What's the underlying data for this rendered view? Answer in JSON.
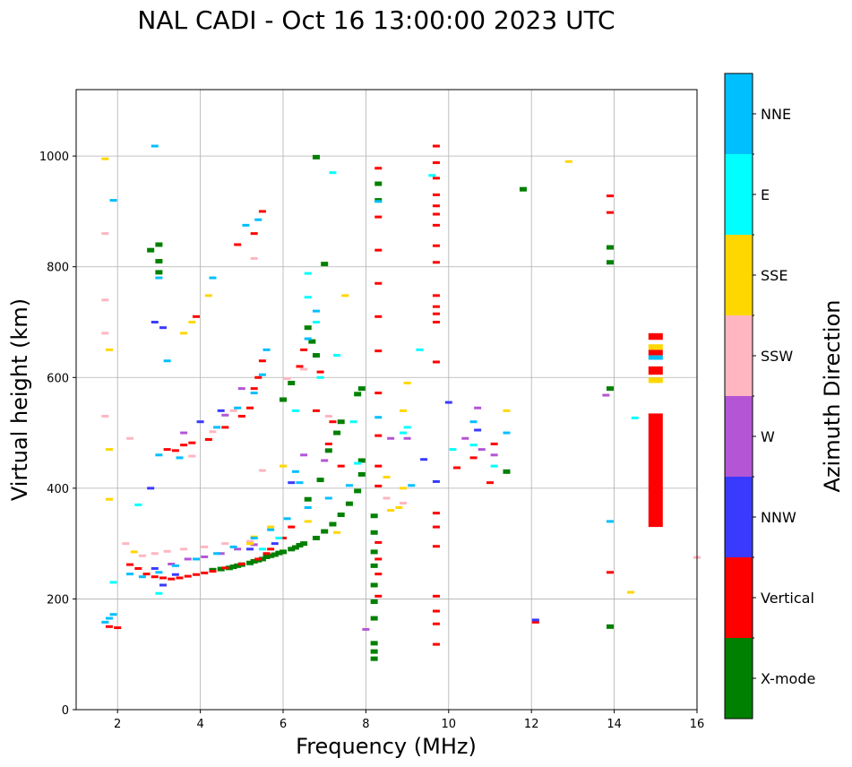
{
  "chart_data": {
    "type": "scatter",
    "title": "NAL CADI - Oct 16 13:00:00 2023 UTC",
    "xlabel": "Frequency (MHz)",
    "ylabel": "Virtual height (km)",
    "xlim": [
      1,
      16
    ],
    "ylim": [
      0,
      1120
    ],
    "xticks": [
      2,
      4,
      6,
      8,
      10,
      12,
      14,
      16
    ],
    "yticks": [
      0,
      200,
      400,
      600,
      800,
      1000
    ],
    "grid": true,
    "colorbar": {
      "label": "Azimuth Direction",
      "categories": [
        {
          "name": "X-mode",
          "color": "#008000"
        },
        {
          "name": "Vertical",
          "color": "#ff0000"
        },
        {
          "name": "NNW",
          "color": "#3a3aff"
        },
        {
          "name": "W",
          "color": "#b455d6"
        },
        {
          "name": "SSW",
          "color": "#ffb6c1"
        },
        {
          "name": "SSE",
          "color": "#ffd700"
        },
        {
          "name": "E",
          "color": "#00ffff"
        },
        {
          "name": "NNE",
          "color": "#00bfff"
        }
      ]
    },
    "series": [
      {
        "name": "X-mode",
        "points": [
          [
            6.5,
            300
          ],
          [
            6.4,
            297
          ],
          [
            6.3,
            293
          ],
          [
            6.2,
            290
          ],
          [
            6.0,
            285
          ],
          [
            5.9,
            283
          ],
          [
            5.8,
            280
          ],
          [
            5.7,
            278
          ],
          [
            5.6,
            276
          ],
          [
            5.5,
            272
          ],
          [
            5.4,
            270
          ],
          [
            5.3,
            268
          ],
          [
            5.2,
            265
          ],
          [
            5.0,
            262
          ],
          [
            4.9,
            260
          ],
          [
            4.8,
            258
          ],
          [
            4.7,
            256
          ],
          [
            4.5,
            254
          ],
          [
            4.3,
            252
          ],
          [
            6.8,
            310
          ],
          [
            7.0,
            322
          ],
          [
            7.2,
            335
          ],
          [
            7.4,
            352
          ],
          [
            7.6,
            372
          ],
          [
            7.8,
            395
          ],
          [
            7.9,
            425
          ],
          [
            7.9,
            450
          ],
          [
            8.2,
            350
          ],
          [
            8.2,
            320
          ],
          [
            8.2,
            285
          ],
          [
            8.2,
            260
          ],
          [
            8.2,
            225
          ],
          [
            8.2,
            195
          ],
          [
            8.2,
            165
          ],
          [
            8.2,
            120
          ],
          [
            8.2,
            105
          ],
          [
            8.2,
            92
          ],
          [
            6.6,
            380
          ],
          [
            6.9,
            415
          ],
          [
            7.1,
            468
          ],
          [
            7.4,
            520
          ],
          [
            7.8,
            570
          ],
          [
            7.9,
            580
          ],
          [
            6.8,
            640
          ],
          [
            6.7,
            665
          ],
          [
            6.6,
            690
          ],
          [
            6.8,
            998
          ],
          [
            7.0,
            805
          ],
          [
            8.3,
            950
          ],
          [
            8.3,
            920
          ],
          [
            13.9,
            835
          ],
          [
            13.9,
            808
          ],
          [
            13.9,
            580
          ],
          [
            13.9,
            150
          ],
          [
            11.8,
            940
          ],
          [
            3.0,
            840
          ],
          [
            3.0,
            810
          ],
          [
            3.0,
            790
          ],
          [
            2.8,
            830
          ],
          [
            6.2,
            590
          ],
          [
            6.0,
            560
          ],
          [
            7.3,
            500
          ],
          [
            11.4,
            430
          ]
        ]
      },
      {
        "name": "Vertical",
        "points": [
          [
            2.3,
            262
          ],
          [
            2.5,
            255
          ],
          [
            2.7,
            245
          ],
          [
            2.9,
            240
          ],
          [
            3.1,
            238
          ],
          [
            3.3,
            236
          ],
          [
            3.5,
            238
          ],
          [
            3.7,
            241
          ],
          [
            3.9,
            244
          ],
          [
            4.1,
            247
          ],
          [
            4.3,
            250
          ],
          [
            4.6,
            256
          ],
          [
            5.0,
            263
          ],
          [
            5.4,
            272
          ],
          [
            5.6,
            282
          ],
          [
            1.8,
            150
          ],
          [
            2.0,
            148
          ],
          [
            3.4,
            468
          ],
          [
            3.6,
            478
          ],
          [
            3.8,
            482
          ],
          [
            4.2,
            488
          ],
          [
            4.6,
            510
          ],
          [
            5.0,
            530
          ],
          [
            5.2,
            545
          ],
          [
            5.4,
            600
          ],
          [
            5.5,
            630
          ],
          [
            5.3,
            580
          ],
          [
            3.9,
            710
          ],
          [
            4.9,
            840
          ],
          [
            5.3,
            860
          ],
          [
            5.5,
            900
          ],
          [
            3.2,
            470
          ],
          [
            8.3,
            978
          ],
          [
            8.3,
            890
          ],
          [
            8.3,
            830
          ],
          [
            8.3,
            770
          ],
          [
            8.3,
            710
          ],
          [
            8.3,
            648
          ],
          [
            8.3,
            572
          ],
          [
            8.3,
            495
          ],
          [
            8.3,
            440
          ],
          [
            8.3,
            404
          ],
          [
            8.3,
            302
          ],
          [
            8.3,
            272
          ],
          [
            8.3,
            245
          ],
          [
            8.3,
            205
          ],
          [
            9.7,
            1018
          ],
          [
            9.7,
            988
          ],
          [
            9.7,
            960
          ],
          [
            9.7,
            930
          ],
          [
            9.7,
            910
          ],
          [
            9.7,
            895
          ],
          [
            9.7,
            875
          ],
          [
            9.7,
            838
          ],
          [
            9.7,
            808
          ],
          [
            9.7,
            748
          ],
          [
            9.7,
            728
          ],
          [
            9.7,
            715
          ],
          [
            9.7,
            700
          ],
          [
            9.7,
            628
          ],
          [
            9.7,
            355
          ],
          [
            9.7,
            330
          ],
          [
            9.7,
            295
          ],
          [
            9.7,
            205
          ],
          [
            9.7,
            178
          ],
          [
            9.7,
            155
          ],
          [
            9.7,
            118
          ],
          [
            10.2,
            437
          ],
          [
            10.6,
            455
          ],
          [
            11.0,
            410
          ],
          [
            11.1,
            480
          ],
          [
            13.9,
            928
          ],
          [
            13.9,
            898
          ],
          [
            13.9,
            248
          ],
          [
            12.1,
            158
          ],
          [
            6.4,
            620
          ],
          [
            6.8,
            540
          ],
          [
            7.1,
            480
          ],
          [
            7.4,
            440
          ],
          [
            6.2,
            330
          ],
          [
            6.0,
            310
          ],
          [
            5.7,
            290
          ],
          [
            6.5,
            650
          ],
          [
            6.9,
            610
          ],
          [
            7.2,
            520
          ]
        ]
      },
      {
        "name": "NNW",
        "points": [
          [
            3.1,
            225
          ],
          [
            3.4,
            244
          ],
          [
            2.9,
            255
          ],
          [
            12.1,
            162
          ],
          [
            10.0,
            555
          ],
          [
            9.7,
            412
          ],
          [
            9.4,
            452
          ],
          [
            10.7,
            505
          ],
          [
            5.2,
            290
          ],
          [
            5.8,
            300
          ],
          [
            6.2,
            410
          ],
          [
            2.9,
            700
          ],
          [
            3.1,
            690
          ],
          [
            4.0,
            520
          ],
          [
            4.5,
            540
          ],
          [
            2.8,
            400
          ]
        ]
      },
      {
        "name": "W",
        "points": [
          [
            3.3,
            263
          ],
          [
            3.7,
            272
          ],
          [
            4.1,
            276
          ],
          [
            4.5,
            282
          ],
          [
            4.9,
            290
          ],
          [
            5.3,
            298
          ],
          [
            8.6,
            490
          ],
          [
            9.0,
            490
          ],
          [
            10.7,
            545
          ],
          [
            10.4,
            490
          ],
          [
            10.8,
            470
          ],
          [
            11.1,
            460
          ],
          [
            13.8,
            568
          ],
          [
            8.0,
            145
          ],
          [
            7.0,
            450
          ],
          [
            6.5,
            460
          ],
          [
            4.6,
            532
          ],
          [
            5.0,
            580
          ],
          [
            3.6,
            500
          ]
        ]
      },
      {
        "name": "SSW",
        "points": [
          [
            2.2,
            300
          ],
          [
            2.6,
            278
          ],
          [
            2.9,
            282
          ],
          [
            3.2,
            286
          ],
          [
            3.6,
            290
          ],
          [
            4.1,
            294
          ],
          [
            4.6,
            300
          ],
          [
            5.2,
            304
          ],
          [
            3.8,
            458
          ],
          [
            4.3,
            502
          ],
          [
            4.8,
            540
          ],
          [
            5.3,
            815
          ],
          [
            5.5,
            432
          ],
          [
            6.1,
            598
          ],
          [
            8.5,
            382
          ],
          [
            8.9,
            373
          ],
          [
            16.0,
            275
          ],
          [
            1.7,
            740
          ],
          [
            1.7,
            680
          ],
          [
            1.7,
            860
          ],
          [
            1.7,
            530
          ],
          [
            2.3,
            490
          ],
          [
            6.5,
            615
          ],
          [
            7.1,
            530
          ]
        ]
      },
      {
        "name": "SSE",
        "points": [
          [
            8.6,
            360
          ],
          [
            8.8,
            365
          ],
          [
            8.5,
            420
          ],
          [
            8.9,
            540
          ],
          [
            9.0,
            590
          ],
          [
            8.9,
            400
          ],
          [
            12.9,
            990
          ],
          [
            14.4,
            212
          ],
          [
            11.4,
            540
          ],
          [
            1.7,
            995
          ],
          [
            1.8,
            650
          ],
          [
            1.8,
            470
          ],
          [
            1.8,
            380
          ],
          [
            7.3,
            320
          ],
          [
            6.0,
            440
          ],
          [
            4.2,
            748
          ],
          [
            3.6,
            680
          ],
          [
            3.8,
            700
          ],
          [
            5.3,
            312
          ],
          [
            5.7,
            330
          ],
          [
            7.5,
            748
          ],
          [
            2.4,
            285
          ],
          [
            5.2,
            300
          ],
          [
            6.6,
            340
          ]
        ]
      },
      {
        "name": "E",
        "points": [
          [
            7.2,
            970
          ],
          [
            6.6,
            788
          ],
          [
            6.6,
            745
          ],
          [
            6.8,
            700
          ],
          [
            7.3,
            640
          ],
          [
            7.7,
            520
          ],
          [
            7.8,
            445
          ],
          [
            8.9,
            500
          ],
          [
            9.0,
            510
          ],
          [
            9.6,
            965
          ],
          [
            9.3,
            650
          ],
          [
            10.1,
            470
          ],
          [
            10.6,
            478
          ],
          [
            11.1,
            440
          ],
          [
            14.5,
            527
          ],
          [
            3.0,
            210
          ],
          [
            2.5,
            370
          ],
          [
            1.9,
            230
          ],
          [
            6.3,
            540
          ],
          [
            6.9,
            600
          ],
          [
            5.5,
            290
          ],
          [
            5.9,
            310
          ]
        ]
      },
      {
        "name": "NNE",
        "points": [
          [
            1.7,
            158
          ],
          [
            1.8,
            165
          ],
          [
            1.9,
            172
          ],
          [
            2.3,
            245
          ],
          [
            2.6,
            240
          ],
          [
            3.0,
            248
          ],
          [
            3.4,
            260
          ],
          [
            3.9,
            272
          ],
          [
            4.4,
            282
          ],
          [
            4.8,
            294
          ],
          [
            5.3,
            310
          ],
          [
            5.7,
            325
          ],
          [
            6.1,
            345
          ],
          [
            6.6,
            365
          ],
          [
            7.1,
            382
          ],
          [
            7.6,
            405
          ],
          [
            4.4,
            510
          ],
          [
            4.9,
            545
          ],
          [
            5.3,
            572
          ],
          [
            5.5,
            605
          ],
          [
            5.6,
            650
          ],
          [
            3.0,
            460
          ],
          [
            3.5,
            455
          ],
          [
            6.6,
            670
          ],
          [
            6.8,
            720
          ],
          [
            5.1,
            875
          ],
          [
            5.4,
            885
          ],
          [
            4.3,
            780
          ],
          [
            3.0,
            780
          ],
          [
            8.3,
            918
          ],
          [
            8.3,
            528
          ],
          [
            13.9,
            340
          ],
          [
            9.1,
            405
          ],
          [
            10.6,
            520
          ],
          [
            11.4,
            500
          ],
          [
            1.9,
            920
          ],
          [
            2.9,
            1018
          ],
          [
            3.2,
            630
          ],
          [
            6.3,
            430
          ],
          [
            6.4,
            410
          ]
        ]
      }
    ],
    "vertical_bars": [
      {
        "name": "Vertical",
        "x": 15.0,
        "y_from": 330,
        "y_to": 535
      },
      {
        "name": "Vertical",
        "x": 15.0,
        "y_from": 605,
        "y_to": 620
      },
      {
        "name": "Vertical",
        "x": 15.0,
        "y_from": 640,
        "y_to": 650
      },
      {
        "name": "SSE",
        "x": 15.0,
        "y_from": 650,
        "y_to": 660
      },
      {
        "name": "NNE",
        "x": 15.0,
        "y_from": 632,
        "y_to": 640
      },
      {
        "name": "Vertical",
        "x": 15.0,
        "y_from": 668,
        "y_to": 680
      },
      {
        "name": "SSE",
        "x": 15.0,
        "y_from": 590,
        "y_to": 600
      }
    ]
  }
}
